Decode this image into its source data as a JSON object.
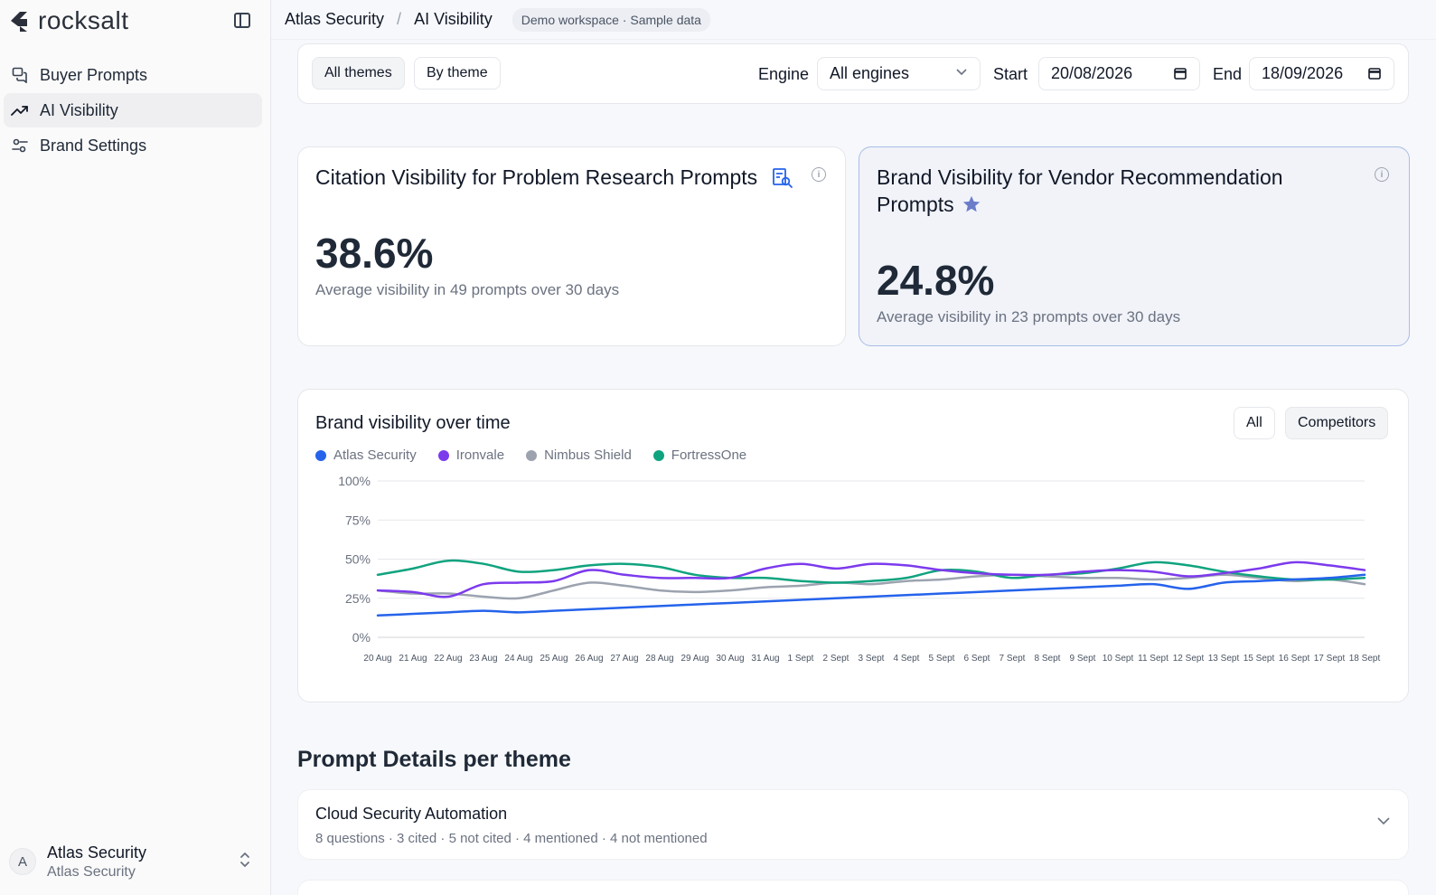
{
  "sidebar": {
    "logo_text": "rocksalt",
    "items": [
      {
        "label": "Buyer Prompts",
        "icon": "chat-bubbles-icon"
      },
      {
        "label": "AI Visibility",
        "icon": "trend-up-icon"
      },
      {
        "label": "Brand Settings",
        "icon": "sliders-icon"
      }
    ],
    "user": {
      "initial": "A",
      "name": "Atlas Security",
      "org": "Atlas Security"
    }
  },
  "header": {
    "breadcrumb": [
      "Atlas Security",
      "AI Visibility"
    ],
    "badge": "Demo workspace · Sample data"
  },
  "filters": {
    "themes": [
      "All themes",
      "By theme"
    ],
    "engine_label": "Engine",
    "engine_value": "All engines",
    "start_label": "Start",
    "start_value": "20/08/2026",
    "end_label": "End",
    "end_value": "18/09/2026"
  },
  "kpis": [
    {
      "title": "Citation Visibility for Problem Research Prompts",
      "icon": "search-document-icon",
      "value": "38.6%",
      "subtitle": "Average visibility in 49 prompts over 30 days"
    },
    {
      "title_line1": "Brand Visibility for Vendor Recommendation",
      "title_line2": "Prompts",
      "icon": "star-icon",
      "value": "24.8%",
      "subtitle": "Average visibility in 23 prompts over 30 days"
    }
  ],
  "chart_section": {
    "title": "Brand visibility over time",
    "toggles": [
      "All",
      "Competitors"
    ]
  },
  "chart_data": {
    "type": "line",
    "x": [
      "20 Aug",
      "21 Aug",
      "22 Aug",
      "23 Aug",
      "24 Aug",
      "25 Aug",
      "26 Aug",
      "27 Aug",
      "28 Aug",
      "29 Aug",
      "30 Aug",
      "31 Aug",
      "1 Sept",
      "2 Sept",
      "3 Sept",
      "4 Sept",
      "5 Sept",
      "6 Sept",
      "7 Sept",
      "8 Sept",
      "9 Sept",
      "10 Sept",
      "11 Sept",
      "12 Sept",
      "13 Sept",
      "15 Sept",
      "16 Sept",
      "17 Sept",
      "18 Sept"
    ],
    "yticks": [
      "0%",
      "25%",
      "50%",
      "75%",
      "100%"
    ],
    "ylim": [
      0,
      100
    ],
    "legend_position": "top-left",
    "grid": true,
    "series": [
      {
        "name": "Atlas Security",
        "color": "#2563eb",
        "values": [
          14,
          15,
          16,
          17,
          16,
          17,
          18,
          19,
          20,
          21,
          22,
          23,
          24,
          25,
          26,
          27,
          28,
          29,
          30,
          31,
          32,
          33,
          34,
          31,
          35,
          36,
          37,
          38,
          40
        ]
      },
      {
        "name": "Ironvale",
        "color": "#7c3aed",
        "values": [
          30,
          29,
          26,
          34,
          35,
          36,
          43,
          40,
          38,
          38,
          38,
          44,
          47,
          44,
          47,
          46,
          43,
          41,
          40,
          40,
          42,
          43,
          42,
          39,
          41,
          44,
          48,
          46,
          43
        ]
      },
      {
        "name": "Nimbus Shield",
        "color": "#9ca3af",
        "values": [
          30,
          28,
          28,
          26,
          25,
          30,
          35,
          33,
          30,
          29,
          30,
          32,
          33,
          35,
          34,
          36,
          37,
          39,
          40,
          39,
          38,
          38,
          37,
          38,
          40,
          38,
          36,
          37,
          34
        ]
      },
      {
        "name": "FortressOne",
        "color": "#10a37f",
        "values": [
          40,
          44,
          49,
          47,
          42,
          43,
          46,
          47,
          45,
          40,
          38,
          38,
          36,
          35,
          36,
          38,
          43,
          42,
          38,
          40,
          41,
          44,
          48,
          46,
          42,
          39,
          37,
          37,
          38
        ]
      }
    ]
  },
  "prompt_details": {
    "title": "Prompt Details per theme",
    "themes": [
      {
        "name": "Cloud Security Automation",
        "meta": "8 questions · 3 cited · 5 not cited · 4 mentioned · 4 not mentioned"
      }
    ]
  }
}
